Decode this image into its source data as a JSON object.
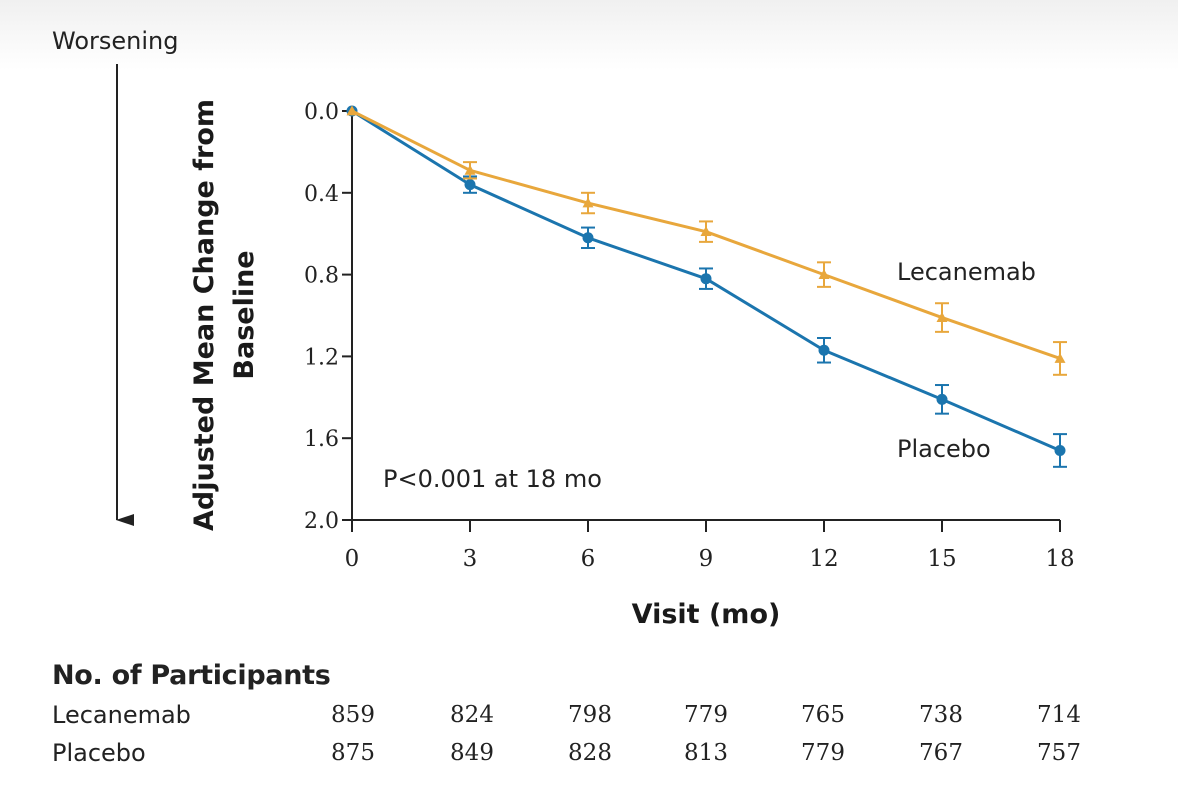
{
  "chart_data": {
    "type": "line",
    "xlabel": "Visit (mo)",
    "ylabel_lines": [
      "Adjusted Mean Change from",
      "Baseline"
    ],
    "direction_label": "Worsening",
    "annotation": "P<0.001 at 18 mo",
    "x": [
      0,
      3,
      6,
      9,
      12,
      15,
      18
    ],
    "xlim": [
      0,
      18
    ],
    "ylim": [
      0.0,
      2.0
    ],
    "y_inverted": true,
    "y_ticks": [
      "0.0",
      "0.4",
      "0.8",
      "1.2",
      "1.6",
      "2.0"
    ],
    "x_ticks": [
      "0",
      "3",
      "6",
      "9",
      "12",
      "15",
      "18"
    ],
    "grid": false,
    "series": [
      {
        "name": "Lecanemab",
        "marker": "triangle",
        "color": "#e8a73c",
        "values": [
          0.0,
          0.29,
          0.45,
          0.59,
          0.8,
          1.01,
          1.21
        ],
        "error": [
          0.0,
          0.04,
          0.05,
          0.05,
          0.06,
          0.07,
          0.08
        ]
      },
      {
        "name": "Placebo",
        "marker": "circle",
        "color": "#1b75ae",
        "values": [
          0.0,
          0.36,
          0.62,
          0.82,
          1.17,
          1.41,
          1.66
        ],
        "error": [
          0.0,
          0.04,
          0.05,
          0.05,
          0.06,
          0.07,
          0.08
        ]
      }
    ]
  },
  "participants": {
    "title": "No. of Participants",
    "rows": [
      {
        "label": "Lecanemab",
        "values": [
          "859",
          "824",
          "798",
          "779",
          "765",
          "738",
          "714"
        ]
      },
      {
        "label": "Placebo",
        "values": [
          "875",
          "849",
          "828",
          "813",
          "779",
          "767",
          "757"
        ]
      }
    ]
  }
}
